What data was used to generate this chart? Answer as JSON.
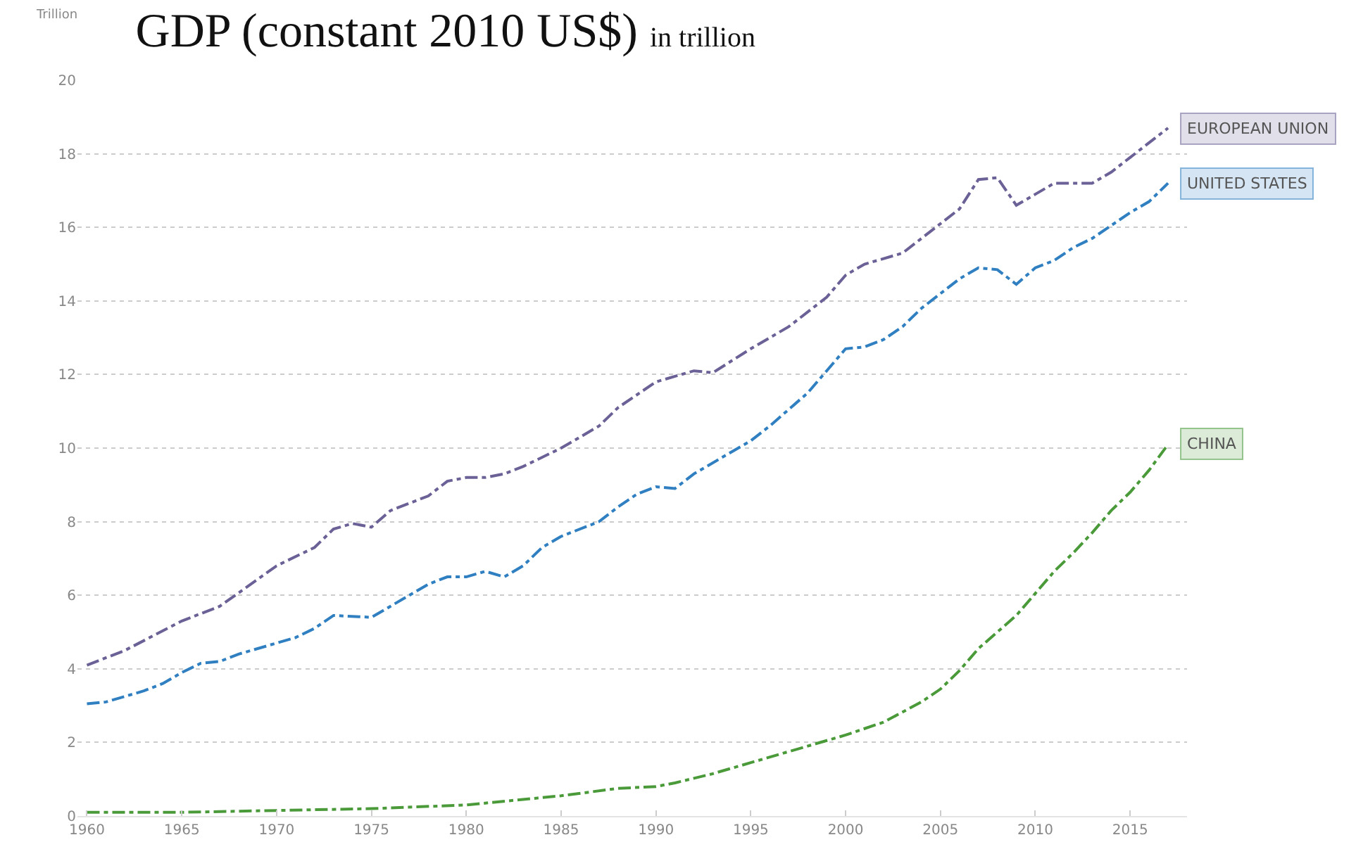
{
  "chart_data": {
    "type": "line",
    "title": "GDP (constant 2010 US$)",
    "subtitle": "in trillion",
    "ylabel": "Trillion",
    "xlim": [
      1959.5,
      2018
    ],
    "xticks": [
      1960,
      1965,
      1970,
      1975,
      1980,
      1985,
      1990,
      1995,
      2000,
      2005,
      2010,
      2015
    ],
    "ylim": [
      0,
      20
    ],
    "yticks": [
      0,
      2,
      4,
      6,
      8,
      10,
      12,
      14,
      16,
      18,
      20
    ],
    "grid": "y",
    "legend": false,
    "line_style": "dashed",
    "series": [
      {
        "name": "EUROPEAN UNION",
        "color": "#6b6196",
        "x": [
          1960,
          1962,
          1965,
          1967,
          1970,
          1972,
          1973,
          1974,
          1975,
          1976,
          1978,
          1979,
          1980,
          1981,
          1982,
          1983,
          1985,
          1987,
          1988,
          1990,
          1992,
          1993,
          1995,
          1997,
          1999,
          2000,
          2001,
          2003,
          2004,
          2006,
          2007,
          2008,
          2009,
          2010,
          2011,
          2013,
          2014,
          2015,
          2016,
          2017
        ],
        "values": [
          4.1,
          4.5,
          5.3,
          5.7,
          6.8,
          7.3,
          7.8,
          7.95,
          7.85,
          8.3,
          8.7,
          9.1,
          9.2,
          9.2,
          9.3,
          9.5,
          10.0,
          10.6,
          11.1,
          11.8,
          12.1,
          12.05,
          12.7,
          13.3,
          14.1,
          14.7,
          15.0,
          15.3,
          15.7,
          16.5,
          17.3,
          17.35,
          16.6,
          16.9,
          17.2,
          17.2,
          17.5,
          17.9,
          18.3,
          18.7
        ]
      },
      {
        "name": "UNITED STATES",
        "color": "#2f7fc1",
        "x": [
          1960,
          1961,
          1963,
          1964,
          1965,
          1966,
          1967,
          1968,
          1970,
          1971,
          1972,
          1973,
          1975,
          1976,
          1977,
          1978,
          1979,
          1980,
          1981,
          1982,
          1983,
          1984,
          1985,
          1987,
          1988,
          1989,
          1990,
          1991,
          1992,
          1994,
          1995,
          1996,
          1998,
          1999,
          2000,
          2001,
          2002,
          2003,
          2004,
          2005,
          2006,
          2007,
          2008,
          2009,
          2010,
          2011,
          2012,
          2013,
          2014,
          2015,
          2016,
          2017
        ],
        "values": [
          3.05,
          3.1,
          3.4,
          3.6,
          3.9,
          4.15,
          4.2,
          4.4,
          4.7,
          4.85,
          5.1,
          5.45,
          5.4,
          5.7,
          6.0,
          6.3,
          6.5,
          6.5,
          6.65,
          6.5,
          6.8,
          7.3,
          7.6,
          8.0,
          8.4,
          8.75,
          8.95,
          8.9,
          9.3,
          9.9,
          10.2,
          10.6,
          11.5,
          12.1,
          12.7,
          12.75,
          12.95,
          13.3,
          13.8,
          14.2,
          14.6,
          14.9,
          14.85,
          14.45,
          14.9,
          15.1,
          15.45,
          15.7,
          16.05,
          16.4,
          16.7,
          17.2
        ]
      },
      {
        "name": "CHINA",
        "color": "#4a9a3a",
        "x": [
          1960,
          1965,
          1970,
          1975,
          1980,
          1985,
          1988,
          1990,
          1991,
          1993,
          1995,
          1997,
          2000,
          2002,
          2004,
          2005,
          2006,
          2007,
          2008,
          2009,
          2010,
          2011,
          2012,
          2013,
          2014,
          2015,
          2016,
          2017
        ],
        "values": [
          0.1,
          0.1,
          0.15,
          0.2,
          0.3,
          0.55,
          0.75,
          0.8,
          0.9,
          1.15,
          1.45,
          1.75,
          2.2,
          2.55,
          3.1,
          3.45,
          3.95,
          4.55,
          5.0,
          5.45,
          6.05,
          6.65,
          7.15,
          7.7,
          8.3,
          8.8,
          9.4,
          10.1
        ]
      }
    ]
  }
}
